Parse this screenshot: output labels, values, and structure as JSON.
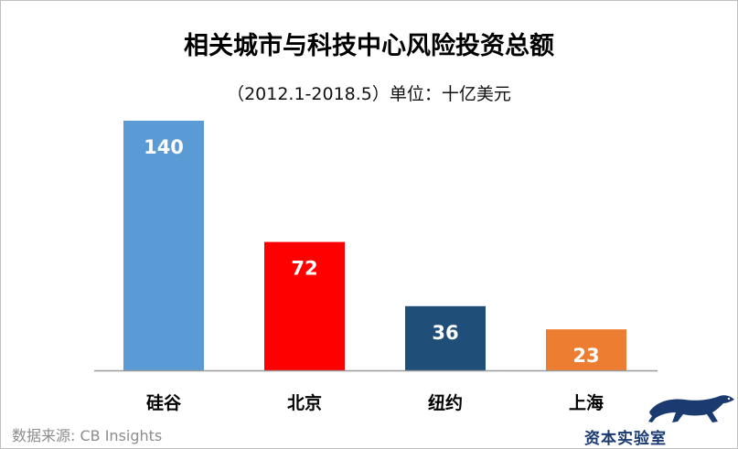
{
  "title": "相关城市与科技中心风险投资总额",
  "subtitle": "（2012.1-2018.5）单位：十亿美元",
  "source": "数据来源: CB Insights",
  "brand": {
    "text": "资本实验室",
    "logo_icon": "leopard-icon"
  },
  "chart_data": {
    "type": "bar",
    "categories": [
      "硅谷",
      "北京",
      "纽约",
      "上海"
    ],
    "values": [
      140,
      72,
      36,
      23
    ],
    "ylim": [
      0,
      140
    ],
    "grid": false,
    "legend": "none",
    "colors": [
      "#5b9bd5",
      "#ff0000",
      "#1f4e79",
      "#ed7d31"
    ],
    "data_label_color": "#ffffff"
  }
}
